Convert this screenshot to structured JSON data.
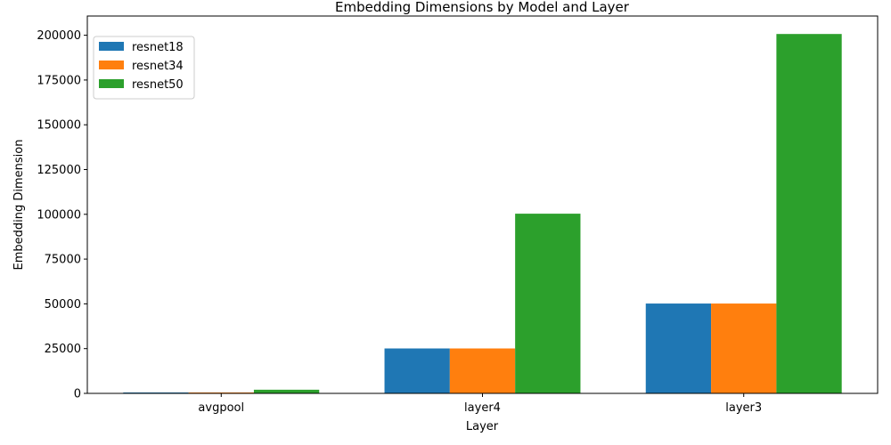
{
  "chart_data": {
    "type": "bar",
    "title": "Embedding Dimensions by Model and Layer",
    "xlabel": "Layer",
    "ylabel": "Embedding Dimension",
    "categories": [
      "avgpool",
      "layer4",
      "layer3"
    ],
    "series": [
      {
        "name": "resnet18",
        "color": "#1f77b4",
        "values": [
          512,
          25088,
          50176
        ]
      },
      {
        "name": "resnet34",
        "color": "#ff7f0e",
        "values": [
          512,
          25088,
          50176
        ]
      },
      {
        "name": "resnet50",
        "color": "#2ca02c",
        "values": [
          2048,
          100352,
          200704
        ]
      }
    ],
    "ylim": [
      0,
      210739
    ],
    "yticks": [
      0,
      25000,
      50000,
      75000,
      100000,
      125000,
      150000,
      175000,
      200000
    ],
    "legend_position": "top-left",
    "grid": false
  }
}
